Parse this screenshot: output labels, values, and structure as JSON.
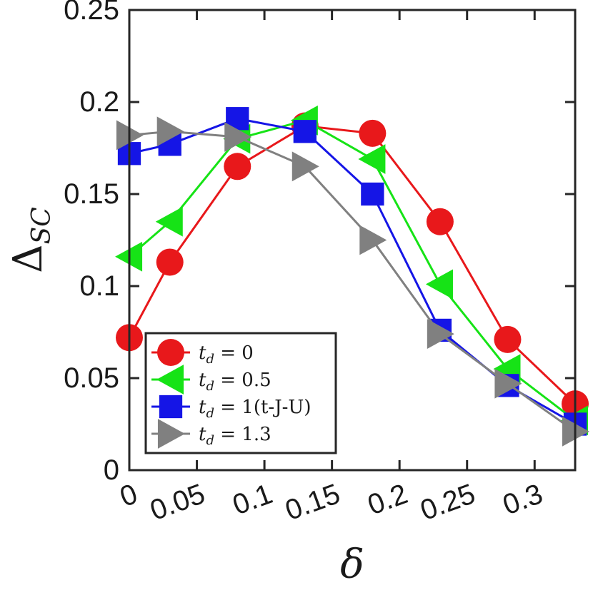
{
  "chart_data": {
    "type": "line",
    "xlabel": "δ",
    "ylabel": "Δ",
    "ylabel_sub": "SC",
    "xlim": [
      0,
      0.33
    ],
    "ylim": [
      0,
      0.25
    ],
    "x_ticks": [
      "0",
      "0.05",
      "0.1",
      "0.15",
      "0.2",
      "0.25",
      "0.3"
    ],
    "x_tick_values": [
      0,
      0.05,
      0.1,
      0.15,
      0.2,
      0.25,
      0.3
    ],
    "y_ticks": [
      "0",
      "0.05",
      "0.1",
      "0.15",
      "0.2",
      "0.25"
    ],
    "y_tick_values": [
      0,
      0.05,
      0.1,
      0.15,
      0.2,
      0.25
    ],
    "grid": false,
    "legend_position": "bottom-left",
    "series": [
      {
        "name": "t_d = 0",
        "legend_var": "t",
        "legend_sub": "d",
        "legend_rest": " = 0",
        "color": "#e8181b",
        "marker": "circle",
        "x": [
          0,
          0.03,
          0.08,
          0.13,
          0.18,
          0.23,
          0.28,
          0.33
        ],
        "values": [
          0.072,
          0.113,
          0.165,
          0.187,
          0.183,
          0.135,
          0.071,
          0.036
        ]
      },
      {
        "name": "t_d = 0.5",
        "legend_var": "t",
        "legend_sub": "d",
        "legend_rest": " = 0.5",
        "color": "#16e316",
        "marker": "triangle-left",
        "x": [
          0,
          0.03,
          0.08,
          0.13,
          0.18,
          0.23,
          0.28,
          0.33
        ],
        "values": [
          0.116,
          0.135,
          0.18,
          0.19,
          0.169,
          0.101,
          0.055,
          0.027
        ]
      },
      {
        "name": "t_d = 1(t-J-U)",
        "legend_var": "t",
        "legend_sub": "d",
        "legend_rest": " = 1(t-J-U)",
        "color": "#1515e6",
        "marker": "square",
        "x": [
          0,
          0.03,
          0.08,
          0.13,
          0.18,
          0.23,
          0.28,
          0.33
        ],
        "values": [
          0.172,
          0.177,
          0.191,
          0.184,
          0.15,
          0.076,
          0.046,
          0.025
        ]
      },
      {
        "name": "t_d = 1.3",
        "legend_var": "t",
        "legend_sub": "d",
        "legend_rest": " = 1.3",
        "color": "#808080",
        "marker": "triangle-right",
        "x": [
          0,
          0.03,
          0.08,
          0.13,
          0.18,
          0.23,
          0.28,
          0.33
        ],
        "values": [
          0.182,
          0.184,
          0.181,
          0.165,
          0.125,
          0.074,
          0.047,
          0.021
        ]
      }
    ]
  }
}
